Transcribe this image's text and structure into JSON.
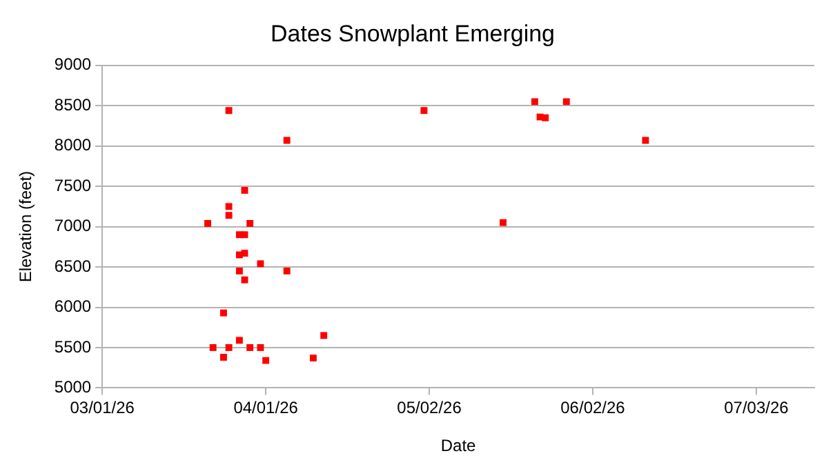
{
  "chart_data": {
    "type": "scatter",
    "title": "Dates Snowplant Emerging",
    "xlabel": "Date",
    "ylabel": "Elevation (feet)",
    "x": [
      "2026-03-21",
      "2026-03-22",
      "2026-03-24",
      "2026-03-24",
      "2026-03-25",
      "2026-03-25",
      "2026-03-25",
      "2026-03-25",
      "2026-03-27",
      "2026-03-27",
      "2026-03-27",
      "2026-03-27",
      "2026-03-28",
      "2026-03-28",
      "2026-03-28",
      "2026-03-28",
      "2026-03-29",
      "2026-03-29",
      "2026-03-31",
      "2026-03-31",
      "2026-04-01",
      "2026-04-05",
      "2026-04-05",
      "2026-04-10",
      "2026-04-12",
      "2026-05-01",
      "2026-05-16",
      "2026-05-22",
      "2026-05-23",
      "2026-05-24",
      "2026-05-28",
      "2026-06-12"
    ],
    "series": [
      {
        "color": "#ff0000",
        "values": [
          7040,
          5500,
          5380,
          5930,
          8440,
          7250,
          7140,
          5500,
          5590,
          6900,
          6650,
          6450,
          7450,
          6900,
          6670,
          6340,
          7040,
          5500,
          6540,
          5500,
          5340,
          8070,
          6450,
          5370,
          5650,
          8440,
          7050,
          8550,
          8360,
          8350,
          8550,
          8070
        ]
      }
    ],
    "xlim": [
      "2026-03-01",
      "2026-07-14"
    ],
    "xticks": [
      {
        "value": "2026-03-01",
        "label": "03/01/26"
      },
      {
        "value": "2026-04-01",
        "label": "04/01/26"
      },
      {
        "value": "2026-05-02",
        "label": "05/02/26"
      },
      {
        "value": "2026-06-02",
        "label": "06/02/26"
      },
      {
        "value": "2026-07-03",
        "label": "07/03/26"
      }
    ],
    "ylim": [
      5000,
      9000
    ],
    "yticks": [
      5000,
      5500,
      6000,
      6500,
      7000,
      7500,
      8000,
      8500,
      9000
    ],
    "grid": "y",
    "marker": "square",
    "legend": false
  }
}
